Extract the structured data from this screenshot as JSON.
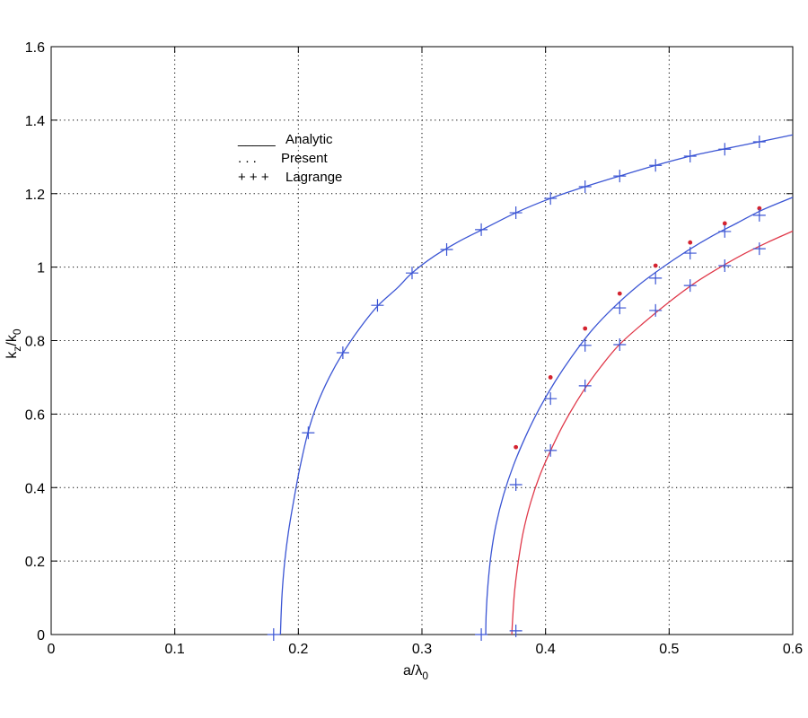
{
  "chart_data": {
    "type": "line",
    "xlabel": [
      {
        "text": "a/λ"
      },
      {
        "text": "0",
        "sub": true
      }
    ],
    "ylabel": [
      {
        "text": "k"
      },
      {
        "text": "z",
        "sub": true
      },
      {
        "text": "/k"
      },
      {
        "text": "0",
        "sub": true
      }
    ],
    "xlim": [
      0,
      0.6
    ],
    "ylim": [
      0,
      1.6
    ],
    "xticks": [
      0,
      0.1,
      0.2,
      0.3,
      0.4,
      0.5,
      0.6
    ],
    "xtick_labels": [
      "0",
      "0.1",
      "0.2",
      "0.3",
      "0.4",
      "0.5",
      "0.6"
    ],
    "yticks": [
      0,
      0.2,
      0.4,
      0.6,
      0.8,
      1,
      1.2,
      1.4,
      1.6
    ],
    "ytick_labels": [
      "0",
      "0.2",
      "0.4",
      "0.6",
      "0.8",
      "1",
      "1.2",
      "1.4",
      "1.6"
    ],
    "grid": true,
    "box": true,
    "legend": {
      "placement": "top-left",
      "entries": [
        {
          "symbol": "_____",
          "label": "Analytic"
        },
        {
          "symbol": ". . .",
          "label": "Present"
        },
        {
          "symbol": "+ + +",
          "label": "Lagrange"
        }
      ]
    },
    "series": [
      {
        "name": "Analytic",
        "style": "line",
        "color": "#3b55d4",
        "points": [
          [
            0.1855,
            0
          ],
          [
            0.186,
            0.05
          ],
          [
            0.187,
            0.12
          ],
          [
            0.189,
            0.2
          ],
          [
            0.192,
            0.28
          ],
          [
            0.196,
            0.36
          ],
          [
            0.201,
            0.45
          ],
          [
            0.2077,
            0.549
          ],
          [
            0.215,
            0.625
          ],
          [
            0.225,
            0.7
          ],
          [
            0.236,
            0.766
          ],
          [
            0.25,
            0.835
          ],
          [
            0.2644,
            0.895
          ],
          [
            0.28,
            0.943
          ],
          [
            0.292,
            0.984
          ],
          [
            0.31,
            1.03
          ],
          [
            0.33,
            1.07
          ],
          [
            0.35,
            1.104
          ],
          [
            0.376,
            1.148
          ],
          [
            0.404,
            1.187
          ],
          [
            0.432,
            1.219
          ],
          [
            0.46,
            1.248
          ],
          [
            0.489,
            1.277
          ],
          [
            0.517,
            1.302
          ],
          [
            0.545,
            1.322
          ],
          [
            0.573,
            1.341
          ],
          [
            0.6,
            1.36
          ]
        ]
      },
      {
        "name": "Analytic",
        "style": "line",
        "color": "#3b55d4",
        "points": [
          [
            0.3516,
            0
          ],
          [
            0.352,
            0.06
          ],
          [
            0.3535,
            0.14
          ],
          [
            0.356,
            0.22
          ],
          [
            0.36,
            0.3
          ],
          [
            0.366,
            0.38
          ],
          [
            0.374,
            0.46
          ],
          [
            0.384,
            0.54
          ],
          [
            0.395,
            0.615
          ],
          [
            0.408,
            0.69
          ],
          [
            0.422,
            0.76
          ],
          [
            0.438,
            0.83
          ],
          [
            0.455,
            0.89
          ],
          [
            0.475,
            0.95
          ],
          [
            0.495,
            1.0
          ],
          [
            0.515,
            1.045
          ],
          [
            0.535,
            1.085
          ],
          [
            0.555,
            1.12
          ],
          [
            0.575,
            1.155
          ],
          [
            0.6,
            1.19
          ]
        ]
      },
      {
        "name": "Analytic",
        "style": "line",
        "color": "#e0394a",
        "points": [
          [
            0.3727,
            0
          ],
          [
            0.3735,
            0.05
          ],
          [
            0.375,
            0.12
          ],
          [
            0.378,
            0.2
          ],
          [
            0.382,
            0.28
          ],
          [
            0.388,
            0.36
          ],
          [
            0.395,
            0.43
          ],
          [
            0.404,
            0.5
          ],
          [
            0.415,
            0.575
          ],
          [
            0.43,
            0.66
          ],
          [
            0.445,
            0.73
          ],
          [
            0.46,
            0.79
          ],
          [
            0.48,
            0.85
          ],
          [
            0.5,
            0.905
          ],
          [
            0.52,
            0.955
          ],
          [
            0.54,
            0.997
          ],
          [
            0.56,
            1.035
          ],
          [
            0.58,
            1.068
          ],
          [
            0.6,
            1.098
          ]
        ]
      },
      {
        "name": "Present",
        "style": "dot",
        "color": "#d4232f",
        "points": [
          [
            0.376,
            0.51
          ],
          [
            0.404,
            0.7
          ],
          [
            0.432,
            0.833
          ],
          [
            0.46,
            0.928
          ],
          [
            0.489,
            1.004
          ],
          [
            0.517,
            1.067
          ],
          [
            0.545,
            1.119
          ],
          [
            0.573,
            1.16
          ]
        ]
      },
      {
        "name": "Lagrange",
        "style": "plus",
        "color": "#3b55d4",
        "points": [
          [
            0.18,
            0
          ],
          [
            0.208,
            0.549
          ],
          [
            0.236,
            0.767
          ],
          [
            0.264,
            0.896
          ],
          [
            0.292,
            0.984
          ],
          [
            0.32,
            1.048
          ],
          [
            0.348,
            1.102
          ],
          [
            0.376,
            1.148
          ],
          [
            0.404,
            1.187
          ],
          [
            0.432,
            1.219
          ],
          [
            0.46,
            1.248
          ],
          [
            0.489,
            1.277
          ],
          [
            0.517,
            1.302
          ],
          [
            0.545,
            1.321
          ],
          [
            0.573,
            1.341
          ],
          [
            0.348,
            0
          ],
          [
            0.376,
            0.408
          ],
          [
            0.404,
            0.642
          ],
          [
            0.432,
            0.787
          ],
          [
            0.46,
            0.889
          ],
          [
            0.489,
            0.97
          ],
          [
            0.517,
            1.038
          ],
          [
            0.545,
            1.097
          ],
          [
            0.573,
            1.141
          ],
          [
            0.376,
            0.01
          ],
          [
            0.404,
            0.501
          ],
          [
            0.432,
            0.677
          ],
          [
            0.46,
            0.789
          ],
          [
            0.489,
            0.882
          ],
          [
            0.517,
            0.95
          ],
          [
            0.545,
            1.004
          ],
          [
            0.573,
            1.05
          ]
        ]
      }
    ]
  }
}
